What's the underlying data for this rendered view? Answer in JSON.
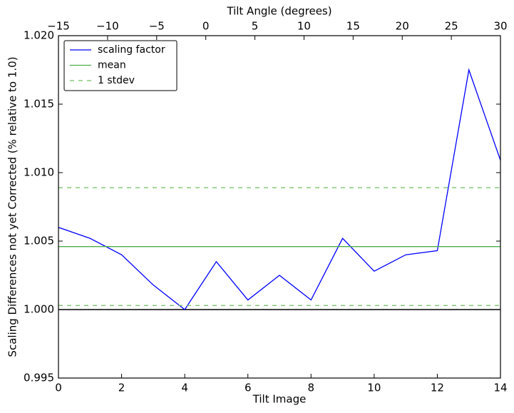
{
  "chart_data": {
    "type": "line",
    "xlabel": "Tilt Image",
    "x2label": "Tilt Angle (degrees)",
    "ylabel": "Scaling Differences not yet Corrected (% relative to 1.0)",
    "x": [
      0,
      1,
      2,
      3,
      4,
      5,
      6,
      7,
      8,
      9,
      10,
      11,
      12,
      13,
      14
    ],
    "series": [
      {
        "name": "scaling factor",
        "color": "#0000ff",
        "values": [
          1.006,
          1.0052,
          1.004,
          1.0018,
          1.0,
          1.0035,
          1.0007,
          1.0025,
          1.0007,
          1.0052,
          1.0028,
          1.004,
          1.0043,
          1.0175,
          1.0109
        ]
      },
      {
        "name": "mean",
        "color": "#4daf4a",
        "hlines": [
          1.0046
        ]
      },
      {
        "name": "1 stdev",
        "color": "#6fbf5f",
        "dashed": true,
        "hlines": [
          1.0089,
          1.0003
        ]
      }
    ],
    "reference_line": {
      "value": 1.0,
      "color": "#000000"
    },
    "xlim": [
      0,
      14
    ],
    "xticks": [
      0,
      2,
      4,
      6,
      8,
      10,
      12,
      14
    ],
    "x2lim": [
      -15,
      30
    ],
    "x2ticks": [
      {
        "value": -15,
        "label": "−15"
      },
      {
        "value": -10,
        "label": "−10"
      },
      {
        "value": -5,
        "label": "−5"
      },
      0,
      5,
      10,
      15,
      20,
      25,
      30
    ],
    "ylim": [
      0.995,
      1.02
    ],
    "yticks": [
      0.995,
      {
        "value": 1.0,
        "label": "1.000"
      },
      1.005,
      {
        "value": 1.01,
        "label": "1.010"
      },
      1.015,
      {
        "value": 1.02,
        "label": "1.020"
      }
    ],
    "legend": "upper left"
  }
}
